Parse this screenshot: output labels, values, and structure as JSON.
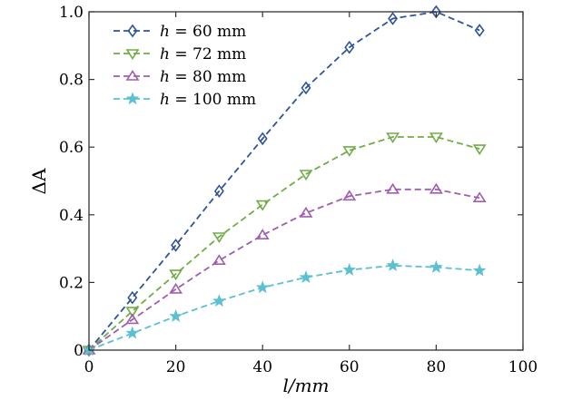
{
  "chart_data": {
    "type": "line",
    "title": "",
    "xlabel": "l/mm",
    "ylabel": "ΔA",
    "xlim": [
      0,
      100
    ],
    "ylim": [
      0,
      1.0
    ],
    "xticks": [
      0,
      20,
      40,
      60,
      80,
      100
    ],
    "xtick_labels": [
      "0",
      "20",
      "40",
      "60",
      "80",
      "100"
    ],
    "yticks": [
      0,
      0.2,
      0.4,
      0.6,
      0.8,
      1.0
    ],
    "ytick_labels": [
      "0",
      "0.2",
      "0.4",
      "0.6",
      "0.8",
      "1.0"
    ],
    "grid": false,
    "legend_position": "top-left",
    "x": [
      0,
      10,
      20,
      30,
      40,
      50,
      60,
      70,
      80,
      90
    ],
    "series": [
      {
        "name": "h = 60 mm",
        "label_var": "h",
        "label_value": "60",
        "label_unit": "mm",
        "marker": "diamond",
        "color": "#2f5597",
        "values": [
          0,
          0.155,
          0.31,
          0.47,
          0.625,
          0.775,
          0.895,
          0.98,
          1.0,
          0.945
        ]
      },
      {
        "name": "h = 72 mm",
        "label_var": "h",
        "label_value": "72",
        "label_unit": "mm",
        "marker": "triangle-down",
        "color": "#70ad47",
        "values": [
          0,
          0.115,
          0.225,
          0.335,
          0.43,
          0.52,
          0.59,
          0.63,
          0.63,
          0.595
        ]
      },
      {
        "name": "h = 80 mm",
        "label_var": "h",
        "label_value": "80",
        "label_unit": "mm",
        "marker": "triangle-up",
        "color": "#9e5fad",
        "values": [
          0,
          0.09,
          0.18,
          0.265,
          0.34,
          0.405,
          0.455,
          0.475,
          0.475,
          0.45
        ]
      },
      {
        "name": "h = 100 mm",
        "label_var": "h",
        "label_value": "100",
        "label_unit": "mm",
        "marker": "star",
        "color": "#5bc0d0",
        "values": [
          0,
          0.05,
          0.1,
          0.145,
          0.185,
          0.215,
          0.237,
          0.25,
          0.245,
          0.235
        ]
      }
    ]
  }
}
